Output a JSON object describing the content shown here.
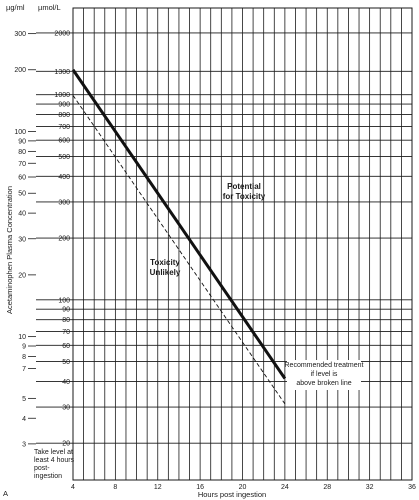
{
  "chart_data": {
    "type": "line",
    "units": {
      "left": "µg/ml",
      "right": "µmol/L"
    },
    "ylabel": "Acetaminophen Plasma Concentration",
    "xlabel": "Hours post ingestion",
    "x_ticks": [
      4,
      8,
      12,
      16,
      20,
      24,
      28,
      32,
      36
    ],
    "xlim": [
      4,
      36
    ],
    "yscale": "log",
    "ylim_ugml": [
      2,
      400
    ],
    "left_ticks": [
      {
        "v": 300,
        "label": "300"
      },
      {
        "v": 200,
        "label": "200"
      },
      {
        "v": 100,
        "label": "100"
      },
      {
        "v": 90,
        "label": "90"
      },
      {
        "v": 80,
        "label": "80"
      },
      {
        "v": 70,
        "label": "70"
      },
      {
        "v": 60,
        "label": "60"
      },
      {
        "v": 50,
        "label": "50"
      },
      {
        "v": 40,
        "label": "40"
      },
      {
        "v": 30,
        "label": "30"
      },
      {
        "v": 20,
        "label": "20"
      },
      {
        "v": 10,
        "label": "10"
      },
      {
        "v": 9,
        "label": "9"
      },
      {
        "v": 8,
        "label": "8"
      },
      {
        "v": 7,
        "label": "7"
      },
      {
        "v": 5,
        "label": "5"
      },
      {
        "v": 4,
        "label": "4"
      },
      {
        "v": 3,
        "label": "3"
      }
    ],
    "right_ticks": [
      {
        "v": 2000,
        "label": "2000"
      },
      {
        "v": 1300,
        "label": "1300"
      },
      {
        "v": 1000,
        "label": "1000"
      },
      {
        "v": 900,
        "label": "900"
      },
      {
        "v": 800,
        "label": "800"
      },
      {
        "v": 700,
        "label": "700"
      },
      {
        "v": 600,
        "label": "600"
      },
      {
        "v": 500,
        "label": "500"
      },
      {
        "v": 400,
        "label": "400"
      },
      {
        "v": 300,
        "label": "300"
      },
      {
        "v": 200,
        "label": "200"
      },
      {
        "v": 100,
        "label": "100"
      },
      {
        "v": 90,
        "label": "90"
      },
      {
        "v": 80,
        "label": "80"
      },
      {
        "v": 70,
        "label": "70"
      },
      {
        "v": 60,
        "label": "60"
      },
      {
        "v": 50,
        "label": "50"
      },
      {
        "v": 40,
        "label": "40"
      },
      {
        "v": 30,
        "label": "30"
      },
      {
        "v": 20,
        "label": "20"
      },
      {
        "v": 10,
        "label": "10"
      }
    ],
    "series": [
      {
        "style": "solid",
        "x": [
          4,
          24
        ],
        "y_ugml": [
          200,
          6.25
        ]
      },
      {
        "style": "dashed",
        "x": [
          4,
          24
        ],
        "y_ugml": [
          150,
          4.7
        ]
      }
    ],
    "annotations": {
      "upper": [
        "Potential",
        "for Toxicity"
      ],
      "lower": [
        "Toxicity",
        "Unlikely"
      ],
      "treatment": [
        "Recommended treatment",
        "if level is",
        "above broken line"
      ],
      "take_level": [
        "Take level at",
        "least 4 hours",
        "post-",
        "ingestion"
      ]
    },
    "grid": true,
    "panel_letter": "A"
  }
}
